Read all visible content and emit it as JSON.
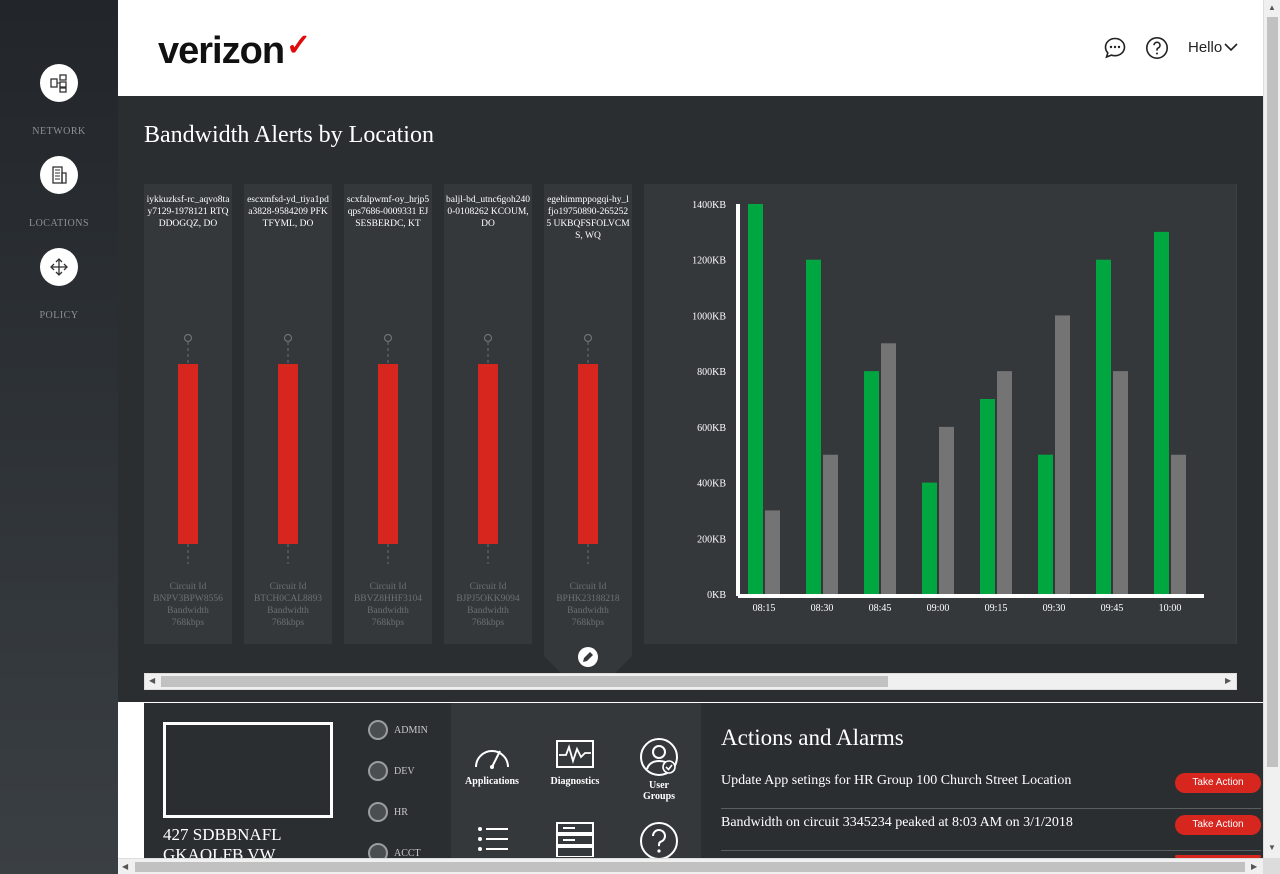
{
  "sidebar": {
    "items": [
      {
        "label": "NETWORK",
        "icon": "network-icon"
      },
      {
        "label": "LOCATIONS",
        "icon": "building-icon"
      },
      {
        "label": "POLICY",
        "icon": "move-arrows-icon"
      }
    ]
  },
  "header": {
    "logo": "verizon",
    "greeting": "Hello",
    "icons": [
      "chat-icon",
      "help-icon",
      "chevron-down-icon"
    ]
  },
  "dashboard": {
    "title": "Bandwidth Alerts by Location",
    "locations": [
      {
        "name": "iykkuzksf-rc_aqvo8tay7129-1978121 RTQDDOGQZ, DO",
        "circuit_label": "Circuit Id",
        "circuit": "BNPV3BPW8556",
        "bw_label": "Bandwidth",
        "bandwidth": "768kbps"
      },
      {
        "name": "escxmfsd-yd_tiya1pda3828-9584209 PFKTFYML, DO",
        "circuit_label": "Circuit Id",
        "circuit": "BTCH0CAL8893",
        "bw_label": "Bandwidth",
        "bandwidth": "768kbps"
      },
      {
        "name": "scxfalpwmf-oy_hrjp5qps7686-0009331 EJSESBERDC, KT",
        "circuit_label": "Circuit Id",
        "circuit": "BBVZ8HHF3104",
        "bw_label": "Bandwidth",
        "bandwidth": "768kbps"
      },
      {
        "name": "baljl-bd_utnc6goh2400-0108262 KCOUM, DO",
        "circuit_label": "Circuit Id",
        "circuit": "BJPJ5OKK9094",
        "bw_label": "Bandwidth",
        "bandwidth": "768kbps"
      },
      {
        "name": "egehimmppogqi-hy_lfjo19750890-2652525 UKBQFSFOLVCMS, WQ",
        "circuit_label": "Circuit Id",
        "circuit": "BPHK23188218",
        "bw_label": "Bandwidth",
        "bandwidth": "768kbps"
      }
    ]
  },
  "chart_data": {
    "type": "bar",
    "categories": [
      "08:15",
      "08:30",
      "08:45",
      "09:00",
      "09:15",
      "09:30",
      "09:45",
      "10:00"
    ],
    "series": [
      {
        "values": [
          1400,
          1200,
          800,
          400,
          700,
          500,
          1200,
          1300
        ],
        "color": "#00a63f"
      },
      {
        "values": [
          300,
          500,
          900,
          600,
          800,
          1000,
          800,
          500
        ],
        "color": "#747474"
      }
    ],
    "ytick_labels": [
      "0KB",
      "200KB",
      "400KB",
      "600KB",
      "800KB",
      "1000KB",
      "1200KB",
      "1400KB"
    ],
    "ylim": [
      0,
      1400
    ]
  },
  "site": {
    "name_line1": "427 SDBBNAFL",
    "name_line2": "GKAOLFB VW"
  },
  "user_groups": [
    "ADMIN",
    "DEV",
    "HR",
    "ACCT"
  ],
  "tools": [
    {
      "label": "Applications",
      "icon": "speedometer-icon"
    },
    {
      "label": "Diagnostics",
      "icon": "pulse-monitor-icon"
    },
    {
      "label_line1": "User",
      "label_line2": "Groups",
      "icon": "user-check-icon"
    }
  ],
  "actions": {
    "title": "Actions and Alarms",
    "items": [
      {
        "text": "Update App setings for HR Group 100 Church Street Location",
        "button": "Take Action"
      },
      {
        "text": "Bandwidth on circuit 3345234 peaked at 8:03 AM on 3/1/2018",
        "button": "Take Action"
      }
    ]
  },
  "colors": {
    "alert_red": "#d7261e",
    "green": "#00a63f",
    "grey_bar": "#747474",
    "panel": "#34383b"
  }
}
